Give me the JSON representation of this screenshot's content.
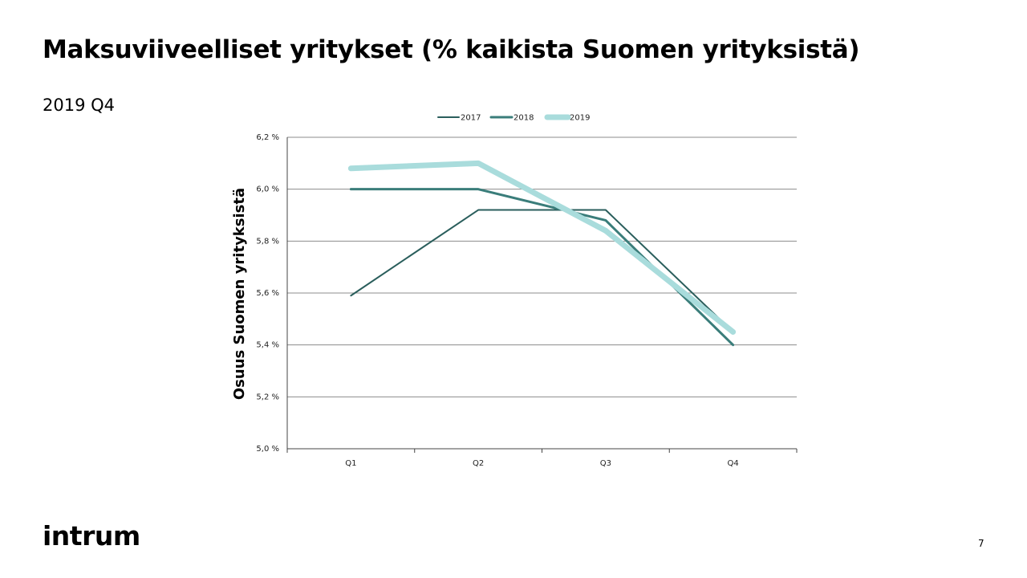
{
  "slide": {
    "title": "Maksuviiveelliset yritykset (% kaikista Suomen yrityksistä)",
    "subtitle": "2019 Q4",
    "logo_text": "intrum",
    "page_number": "7"
  },
  "chart_data": {
    "type": "line",
    "categories": [
      "Q1",
      "Q2",
      "Q3",
      "Q4"
    ],
    "series": [
      {
        "name": "2017",
        "values": [
          5.59,
          5.92,
          5.92,
          5.45
        ],
        "color": "#2a5e5c",
        "stroke": "thin"
      },
      {
        "name": "2018",
        "values": [
          6.0,
          6.0,
          5.88,
          5.4
        ],
        "color": "#3a7d7a",
        "stroke": "medium"
      },
      {
        "name": "2019",
        "values": [
          6.08,
          6.1,
          5.84,
          5.45
        ],
        "color": "#a9dcdc",
        "stroke": "thick"
      }
    ],
    "y_ticks": [
      "5,0 %",
      "5,2 %",
      "5,4 %",
      "5,6 %",
      "5,8 %",
      "6,0 %",
      "6,2 %"
    ],
    "ylim": [
      5.0,
      6.2
    ],
    "ylabel": "Osuus Suomen yrityksistä",
    "xlabel": "",
    "grid": true,
    "legend": "top-center"
  }
}
